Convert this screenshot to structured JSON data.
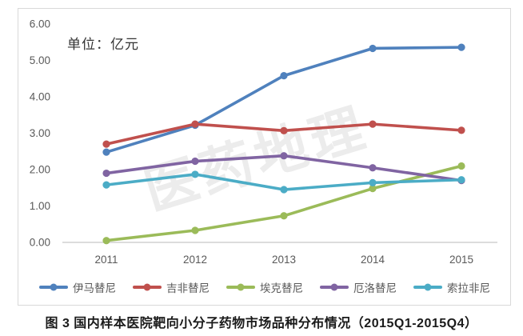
{
  "watermark": "医药地理",
  "caption": "图 3  国内样本医院靶向小分子药物市场品种分布情况（2015Q1-2015Q4）",
  "chart_data": {
    "type": "line",
    "unit_label": "单位：亿元",
    "x_labels": [
      "2011",
      "2012",
      "2013",
      "2014",
      "2015"
    ],
    "ytick_labels": [
      "0.00",
      "1.00",
      "2.00",
      "3.00",
      "4.00",
      "5.00",
      "6.00"
    ],
    "ylim": [
      0,
      6
    ],
    "grid": false,
    "legend_position": "bottom",
    "axis_color": "#c8c8c8",
    "tick_label_color": "#595959",
    "series": [
      {
        "key": "imatinib",
        "name": "伊马替尼",
        "color": "#4F81BD",
        "values": [
          2.48,
          3.22,
          4.58,
          5.33,
          5.36
        ]
      },
      {
        "key": "gefitinib",
        "name": "吉非替尼",
        "color": "#C0504D",
        "values": [
          2.7,
          3.25,
          3.07,
          3.25,
          3.08
        ]
      },
      {
        "key": "icotinib",
        "name": "埃克替尼",
        "color": "#9BBB59",
        "values": [
          0.05,
          0.33,
          0.73,
          1.48,
          2.1
        ]
      },
      {
        "key": "erlotinib",
        "name": "厄洛替尼",
        "color": "#8064A2",
        "values": [
          1.9,
          2.23,
          2.38,
          2.05,
          1.7
        ]
      },
      {
        "key": "sorafenib",
        "name": "索拉非尼",
        "color": "#4BACC6",
        "values": [
          1.58,
          1.87,
          1.45,
          1.64,
          1.72
        ]
      }
    ]
  }
}
